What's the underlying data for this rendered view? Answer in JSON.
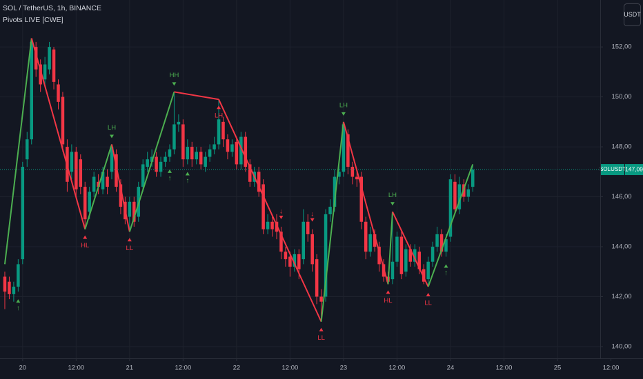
{
  "chart_data": {
    "type": "candlestick",
    "title": "SOL / TetherUS, 1h, BINANCE",
    "subtitle": "Pivots LIVE [CWE]",
    "currency": "USDT",
    "symbol_label": "SOLUSDT",
    "last_price": {
      "value": 147.09,
      "label": "147,09"
    },
    "up_color": "#089981",
    "down_color": "#f23645",
    "grid": true,
    "open": [
      142.8,
      142.6,
      142.1,
      142.4,
      143.5,
      147.5,
      148.3,
      152.0,
      151.3,
      150.7,
      151.1,
      151.9,
      150.5,
      150.0,
      148.0,
      147.0,
      147.8,
      147.5,
      146.4,
      145.4,
      146.2,
      146.6,
      146.3,
      146.8,
      147.0,
      147.7,
      146.5,
      145.8,
      145.2,
      145.8,
      145.2,
      146.4,
      147.2,
      147.4,
      147.6,
      147.0,
      147.4,
      147.6,
      147.9,
      148.9,
      148.9,
      147.5,
      148.0,
      147.5,
      147.8,
      147.2,
      147.6,
      147.9,
      148.1,
      149.0,
      148.3,
      147.8,
      148.2,
      147.3,
      148.4,
      147.3,
      146.6,
      147.0,
      146.5,
      144.7,
      145.0,
      145.0,
      144.6,
      143.8,
      143.6,
      143.2,
      143.7,
      143.5,
      145.0,
      144.5,
      143.5,
      142.0,
      142.0,
      145.3,
      145.6,
      146.8,
      147.0,
      148.5,
      147.2,
      146.8,
      146.8,
      145.0,
      143.8,
      144.5,
      144.0,
      143.3,
      142.8,
      142.7,
      143.4,
      144.4,
      143.0,
      143.9,
      143.4,
      143.8,
      143.1,
      142.7,
      143.4,
      144.0,
      144.5,
      143.8,
      144.4,
      146.6,
      145.5,
      146.5,
      146.0,
      146.4
    ],
    "high": [
      143.0,
      142.8,
      142.6,
      143.5,
      147.4,
      148.6,
      152.35,
      152.2,
      151.5,
      151.6,
      152.2,
      152.0,
      150.7,
      150.2,
      148.3,
      148.1,
      148.0,
      147.7,
      146.6,
      146.4,
      147.0,
      146.9,
      147.2,
      147.1,
      148.1,
      147.9,
      146.7,
      146.0,
      146.0,
      146.0,
      146.6,
      147.5,
      147.8,
      147.9,
      147.8,
      147.6,
      147.8,
      148.1,
      150.2,
      149.3,
      149.1,
      148.3,
      148.2,
      148.0,
      148.0,
      147.8,
      148.1,
      148.4,
      149.9,
      149.2,
      148.5,
      148.3,
      148.4,
      148.6,
      148.6,
      147.5,
      147.2,
      147.2,
      146.7,
      145.3,
      145.2,
      145.3,
      144.8,
      144.0,
      143.8,
      143.9,
      143.9,
      145.5,
      145.3,
      144.7,
      143.7,
      142.3,
      145.5,
      145.9,
      147.1,
      147.3,
      149.0,
      148.7,
      147.4,
      147.1,
      147.0,
      145.2,
      144.8,
      144.7,
      144.2,
      143.5,
      143.0,
      145.4,
      144.6,
      144.6,
      144.1,
      144.1,
      144.1,
      144.0,
      143.3,
      143.6,
      144.2,
      144.8,
      144.7,
      144.5,
      146.9,
      146.9,
      146.8,
      146.7,
      146.5,
      147.3
    ],
    "low": [
      141.5,
      141.9,
      141.8,
      142.2,
      143.3,
      147.2,
      148.1,
      150.8,
      150.2,
      150.4,
      150.9,
      150.3,
      149.5,
      147.8,
      146.2,
      146.7,
      146.0,
      146.1,
      144.7,
      145.1,
      146.0,
      146.1,
      146.1,
      146.1,
      146.7,
      146.2,
      145.3,
      144.9,
      144.6,
      144.8,
      145.0,
      146.2,
      147.0,
      147.2,
      146.8,
      146.8,
      147.2,
      147.4,
      147.7,
      148.6,
      147.2,
      147.3,
      147.2,
      147.3,
      147.1,
      147.0,
      147.4,
      147.7,
      147.9,
      148.0,
      147.5,
      147.6,
      147.1,
      147.1,
      147.0,
      146.4,
      146.4,
      146.0,
      144.5,
      144.5,
      144.4,
      144.3,
      143.5,
      143.2,
      142.8,
      143.0,
      142.7,
      143.3,
      144.2,
      143.0,
      141.7,
      141.0,
      141.8,
      145.0,
      145.4,
      146.5,
      146.8,
      146.9,
      146.5,
      146.4,
      144.7,
      143.5,
      143.6,
      143.8,
      143.0,
      142.6,
      142.5,
      142.5,
      143.2,
      142.7,
      142.8,
      143.2,
      143.2,
      142.9,
      142.5,
      142.4,
      143.2,
      143.8,
      143.6,
      143.6,
      144.2,
      145.3,
      145.3,
      145.8,
      145.8,
      146.2
    ],
    "close": [
      142.2,
      142.1,
      142.4,
      143.3,
      147.2,
      148.3,
      152.2,
      151.1,
      150.5,
      151.3,
      152.0,
      150.6,
      149.8,
      148.1,
      146.6,
      147.8,
      146.3,
      146.4,
      145.1,
      146.2,
      146.8,
      146.4,
      147.0,
      146.4,
      148.0,
      146.4,
      145.6,
      145.1,
      145.8,
      145.0,
      146.4,
      147.3,
      147.5,
      147.6,
      147.0,
      147.4,
      147.6,
      147.9,
      148.9,
      149.0,
      147.5,
      148.0,
      147.5,
      147.8,
      147.3,
      147.6,
      147.9,
      148.1,
      149.1,
      148.3,
      147.8,
      148.1,
      147.3,
      148.4,
      147.2,
      146.6,
      147.0,
      146.2,
      144.7,
      145.0,
      144.7,
      144.6,
      143.8,
      143.5,
      143.2,
      143.7,
      143.1,
      145.0,
      144.5,
      143.3,
      142.0,
      141.8,
      145.3,
      145.6,
      146.8,
      147.0,
      148.9,
      147.2,
      146.8,
      146.7,
      145.0,
      143.8,
      144.5,
      144.0,
      143.3,
      142.8,
      142.6,
      143.4,
      144.4,
      142.9,
      143.9,
      143.4,
      143.9,
      143.1,
      142.6,
      143.4,
      144.0,
      144.5,
      143.8,
      144.3,
      146.7,
      145.5,
      146.5,
      146.0,
      146.3,
      147.09
    ],
    "xlim": [
      -1.08,
      133.6
    ],
    "xticks": [
      {
        "value": 4,
        "label": "20"
      },
      {
        "value": 16,
        "label": "12:00"
      },
      {
        "value": 28,
        "label": "21"
      },
      {
        "value": 40,
        "label": "12:00"
      },
      {
        "value": 52,
        "label": "22"
      },
      {
        "value": 64,
        "label": "12:00"
      },
      {
        "value": 76,
        "label": "23"
      },
      {
        "value": 88,
        "label": "12:00"
      },
      {
        "value": 100,
        "label": "24"
      },
      {
        "value": 112,
        "label": "12:00"
      },
      {
        "value": 124,
        "label": "25"
      },
      {
        "value": 136,
        "label": "12:00"
      }
    ],
    "ylim": [
      139.53,
      153.88
    ],
    "yticks": [
      {
        "value": 140,
        "label": "140,00"
      },
      {
        "value": 142,
        "label": "142,00"
      },
      {
        "value": 144,
        "label": "144,00"
      },
      {
        "value": 146,
        "label": "146,00"
      },
      {
        "value": 148,
        "label": "148,00"
      },
      {
        "value": 150,
        "label": "150,00"
      },
      {
        "value": 152,
        "label": "152,00"
      }
    ],
    "zigzag": {
      "up_color": "#4caf50",
      "down_color": "#f23645",
      "x": [
        0,
        6,
        18,
        24,
        28,
        38,
        48,
        71,
        76,
        86,
        87,
        95,
        105
      ],
      "values": [
        143.3,
        152.35,
        144.7,
        148.1,
        144.6,
        150.2,
        149.9,
        141.0,
        149.0,
        142.5,
        145.4,
        142.4,
        147.3
      ],
      "labels": [
        null,
        null,
        "HL",
        "LH",
        "LL",
        "HH",
        "LH",
        "LL",
        "LH",
        "HL",
        "LH",
        "LL",
        null
      ]
    },
    "signals": [
      {
        "x": 3,
        "label": "↑",
        "color": "#4caf50"
      },
      {
        "x": 37,
        "label": "↑",
        "color": "#4caf50"
      },
      {
        "x": 41,
        "label": "↑",
        "color": "#4caf50"
      },
      {
        "x": 62,
        "label": "↓",
        "color": "#f23645"
      },
      {
        "x": 69,
        "label": "↓",
        "color": "#f23645"
      },
      {
        "x": 99,
        "label": "↑",
        "color": "#4caf50"
      }
    ]
  }
}
